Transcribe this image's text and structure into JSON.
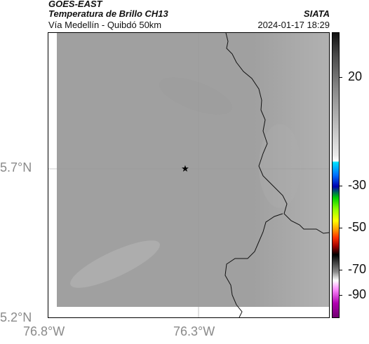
{
  "header": {
    "satellite": "GOES-EAST",
    "product": "Temperatura de Brillo CH13",
    "region": "Vía Medellín - Quibdó 50km",
    "org": "SIATA",
    "datetime": "2024-01-17 18:29"
  },
  "axes": {
    "lat_labels": [
      "5.7°N",
      "5.2°N"
    ],
    "lon_labels": [
      "76.8°W",
      "76.3°W"
    ]
  },
  "colorbar": {
    "labels": [
      "20",
      "-30",
      "-50",
      "-70",
      "-90"
    ]
  },
  "marker": {
    "icon": "star-icon"
  }
}
